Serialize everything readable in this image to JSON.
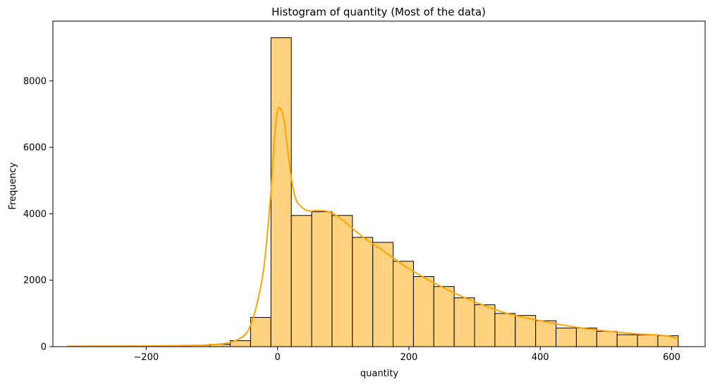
{
  "chart_data": {
    "type": "bar",
    "title": "Histogram of quantity (Most of the data)",
    "xlabel": "quantity",
    "ylabel": "Frequency",
    "xlim": [
      -342,
      651
    ],
    "ylim": [
      0,
      9800
    ],
    "xticks": [
      -200,
      0,
      200,
      400,
      600
    ],
    "xtick_labels": [
      "−200",
      "0",
      "200",
      "400",
      "600"
    ],
    "yticks": [
      0,
      2000,
      4000,
      6000,
      8000
    ],
    "ytick_labels": [
      "0",
      "2000",
      "4000",
      "6000",
      "8000"
    ],
    "grid": false,
    "bar_fill": "#ffd27f",
    "bar_edge": "#000000",
    "kde_color": "#ffa500",
    "bins": [
      {
        "x0": -320,
        "x1": -289,
        "count": 0
      },
      {
        "x0": -289,
        "x1": -258,
        "count": 5
      },
      {
        "x0": -258,
        "x1": -227,
        "count": 10
      },
      {
        "x0": -227,
        "x1": -196,
        "count": 10
      },
      {
        "x0": -196,
        "x1": -165,
        "count": 20
      },
      {
        "x0": -165,
        "x1": -134,
        "count": 25
      },
      {
        "x0": -134,
        "x1": -103,
        "count": 40
      },
      {
        "x0": -103,
        "x1": -72,
        "count": 70
      },
      {
        "x0": -72,
        "x1": -41,
        "count": 180
      },
      {
        "x0": -41,
        "x1": -10,
        "count": 880
      },
      {
        "x0": -10,
        "x1": 21,
        "count": 9300
      },
      {
        "x0": 21,
        "x1": 52,
        "count": 3950
      },
      {
        "x0": 52,
        "x1": 83,
        "count": 4060
      },
      {
        "x0": 83,
        "x1": 114,
        "count": 3950
      },
      {
        "x0": 114,
        "x1": 145,
        "count": 3290
      },
      {
        "x0": 145,
        "x1": 176,
        "count": 3140
      },
      {
        "x0": 176,
        "x1": 207,
        "count": 2570
      },
      {
        "x0": 207,
        "x1": 238,
        "count": 2110
      },
      {
        "x0": 238,
        "x1": 269,
        "count": 1810
      },
      {
        "x0": 269,
        "x1": 300,
        "count": 1470
      },
      {
        "x0": 300,
        "x1": 331,
        "count": 1260
      },
      {
        "x0": 331,
        "x1": 362,
        "count": 1000
      },
      {
        "x0": 362,
        "x1": 393,
        "count": 940
      },
      {
        "x0": 393,
        "x1": 424,
        "count": 780
      },
      {
        "x0": 424,
        "x1": 455,
        "count": 560
      },
      {
        "x0": 455,
        "x1": 486,
        "count": 560
      },
      {
        "x0": 486,
        "x1": 517,
        "count": 460
      },
      {
        "x0": 517,
        "x1": 548,
        "count": 360
      },
      {
        "x0": 548,
        "x1": 579,
        "count": 350
      },
      {
        "x0": 579,
        "x1": 610,
        "count": 330
      }
    ],
    "kde": {
      "x": [
        -320,
        -250,
        -200,
        -150,
        -100,
        -70,
        -50,
        -40,
        -30,
        -20,
        -10,
        -5,
        0,
        5,
        10,
        15,
        20,
        25,
        30,
        40,
        50,
        60,
        80,
        100,
        130,
        160,
        200,
        250,
        300,
        350,
        400,
        450,
        500,
        550,
        580,
        600,
        610
      ],
      "y": [
        10,
        15,
        20,
        30,
        60,
        140,
        350,
        700,
        1400,
        2500,
        4700,
        6200,
        7100,
        7150,
        6800,
        6000,
        5200,
        4650,
        4350,
        4150,
        4080,
        4100,
        4050,
        3800,
        3300,
        2900,
        2350,
        1800,
        1350,
        1000,
        780,
        600,
        470,
        380,
        350,
        300,
        220
      ]
    }
  }
}
